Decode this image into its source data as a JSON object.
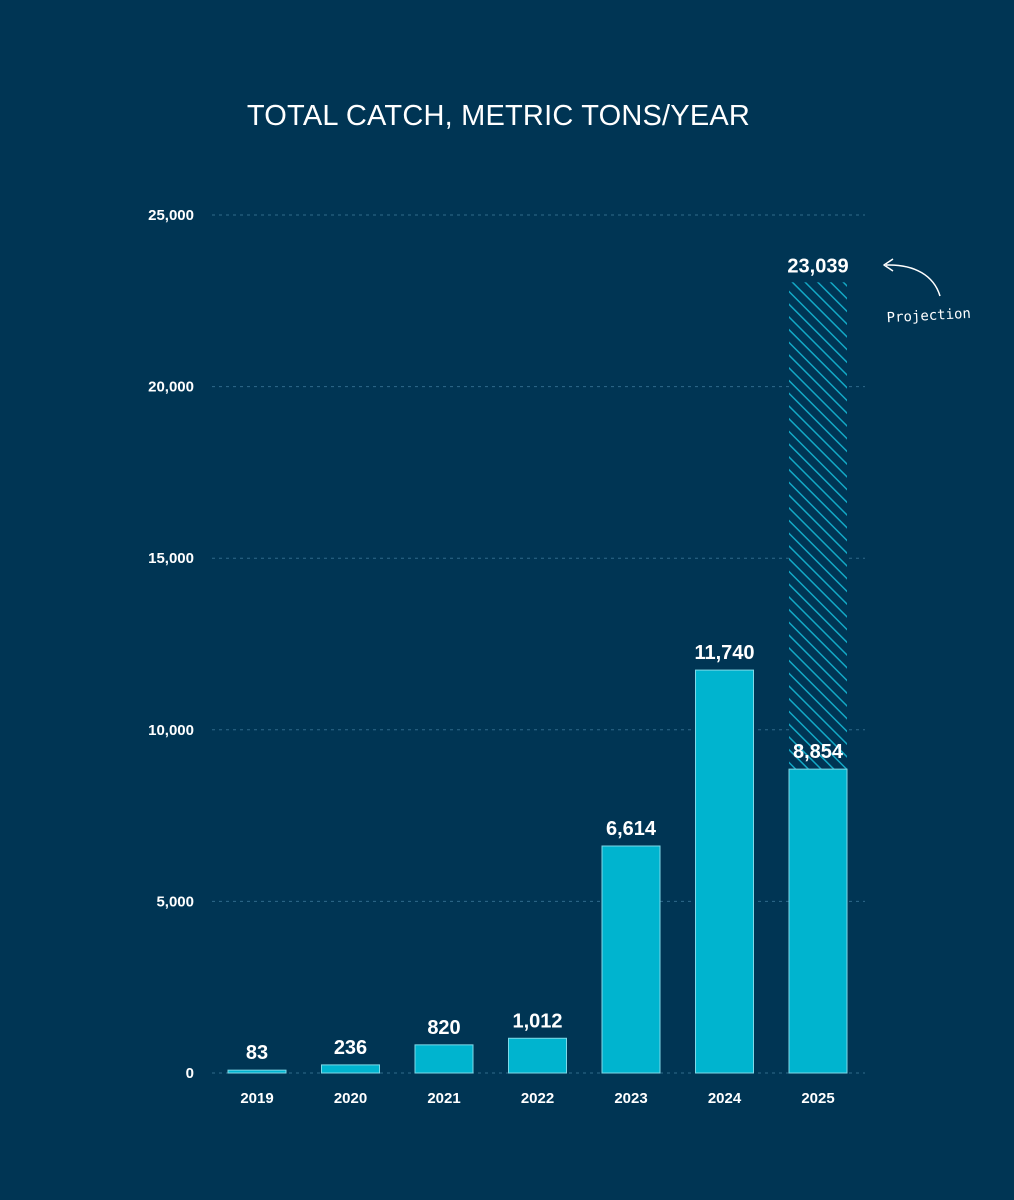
{
  "chart_data": {
    "type": "bar",
    "title": "TOTAL CATCH, METRIC TONS/YEAR",
    "xlabel": "",
    "ylabel": "",
    "categories": [
      "2019",
      "2020",
      "2021",
      "2022",
      "2023",
      "2024",
      "2025"
    ],
    "values": [
      83,
      236,
      820,
      1012,
      6614,
      11740,
      8854
    ],
    "value_labels": [
      "83",
      "236",
      "820",
      "1,012",
      "6,614",
      "11,740",
      "8,854"
    ],
    "projection": {
      "category": "2025",
      "value": 23039,
      "label": "23,039",
      "annotation": "Projection"
    },
    "ylim": [
      0,
      25000
    ],
    "yticks": [
      0,
      5000,
      10000,
      15000,
      20000,
      25000
    ],
    "ytick_labels": [
      "0",
      "5,000",
      "10,000",
      "15,000",
      "20,000",
      "25,000"
    ],
    "grid": true,
    "colors": {
      "background": "#003554",
      "bar": "#00B4CF",
      "bar_edge": "#7FD9E8",
      "hatch": "#13A9C6",
      "grid": "#2F6A8A",
      "text": "#FFFFFF"
    }
  }
}
